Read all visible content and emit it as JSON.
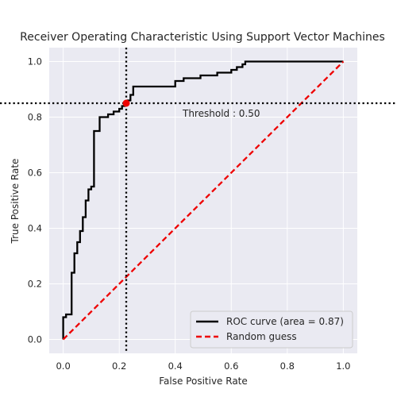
{
  "chart_data": {
    "type": "line",
    "title": "Receiver Operating Characteristic Using Support Vector Machines",
    "xlabel": "False Positive Rate",
    "ylabel": "True Positive Rate",
    "xlim": [
      -0.05,
      1.05
    ],
    "ylim": [
      -0.05,
      1.05
    ],
    "xticks": [
      0.0,
      0.2,
      0.4,
      0.6,
      0.8,
      1.0
    ],
    "yticks": [
      0.0,
      0.2,
      0.4,
      0.6,
      0.8,
      1.0
    ],
    "xtick_labels": [
      "0.0",
      "0.2",
      "0.4",
      "0.6",
      "0.8",
      "1.0"
    ],
    "ytick_labels": [
      "0.0",
      "0.2",
      "0.4",
      "0.6",
      "0.8",
      "1.0"
    ],
    "grid": true,
    "background": "#eaeaf2",
    "legend_position": "lower-right",
    "series": [
      {
        "name": "ROC curve (area = 0.87)",
        "color": "#000000",
        "style": "solid",
        "x": [
          0.0,
          0.0,
          0.01,
          0.01,
          0.03,
          0.03,
          0.04,
          0.04,
          0.05,
          0.05,
          0.06,
          0.06,
          0.07,
          0.07,
          0.08,
          0.08,
          0.09,
          0.09,
          0.1,
          0.1,
          0.11,
          0.11,
          0.12,
          0.12,
          0.13,
          0.13,
          0.16,
          0.16,
          0.18,
          0.18,
          0.2,
          0.2,
          0.21,
          0.21,
          0.22,
          0.22,
          0.23,
          0.23,
          0.24,
          0.24,
          0.25,
          0.25,
          0.27,
          0.27,
          0.4,
          0.4,
          0.43,
          0.43,
          0.49,
          0.49,
          0.55,
          0.55,
          0.6,
          0.6,
          0.62,
          0.62,
          0.64,
          0.64,
          0.65,
          0.65,
          1.0
        ],
        "y": [
          0.0,
          0.08,
          0.08,
          0.09,
          0.09,
          0.24,
          0.24,
          0.31,
          0.31,
          0.35,
          0.35,
          0.39,
          0.39,
          0.44,
          0.44,
          0.5,
          0.5,
          0.54,
          0.54,
          0.55,
          0.55,
          0.75,
          0.75,
          0.75,
          0.75,
          0.8,
          0.8,
          0.81,
          0.81,
          0.82,
          0.82,
          0.83,
          0.83,
          0.84,
          0.84,
          0.85,
          0.85,
          0.86,
          0.86,
          0.88,
          0.88,
          0.91,
          0.91,
          0.91,
          0.91,
          0.93,
          0.93,
          0.94,
          0.94,
          0.95,
          0.95,
          0.96,
          0.96,
          0.97,
          0.97,
          0.98,
          0.98,
          0.99,
          0.99,
          1.0,
          1.0
        ]
      },
      {
        "name": "Random guess",
        "color": "#ee0000",
        "style": "dashed",
        "x": [
          0.0,
          1.0
        ],
        "y": [
          0.0,
          1.0
        ]
      }
    ],
    "threshold_point": {
      "x": 0.225,
      "y": 0.85,
      "color": "#ee0000"
    },
    "reference_lines": {
      "vertical_x": 0.225,
      "horizontal_y": 0.85,
      "style": "dotted",
      "color": "#000000"
    },
    "annotation": "Threshold : 0.50"
  }
}
